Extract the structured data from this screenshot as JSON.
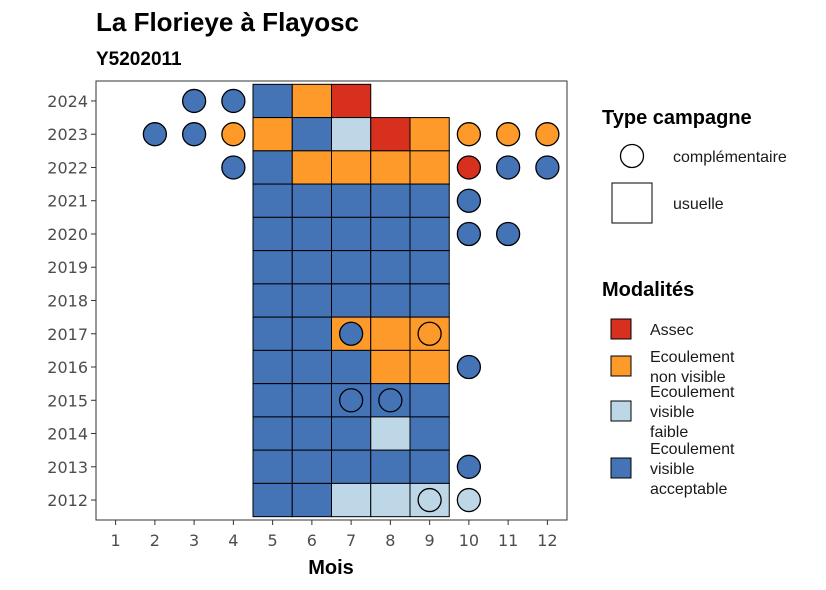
{
  "chart_data": {
    "type": "heatmap",
    "title": "La Florieye à Flayosc",
    "subtitle": "Y5202011",
    "xlabel": "Mois",
    "ylabel": "",
    "x_ticks": [
      1,
      2,
      3,
      4,
      5,
      6,
      7,
      8,
      9,
      10,
      11,
      12
    ],
    "y_ticks": [
      2012,
      2013,
      2014,
      2015,
      2016,
      2017,
      2018,
      2019,
      2020,
      2021,
      2022,
      2023,
      2024
    ],
    "xlim": [
      0.5,
      12.5
    ],
    "ylim": [
      2011.4,
      2024.6
    ],
    "grid": false,
    "legend_position": "right",
    "colors": {
      "Assec": "#d7301f",
      "Ecoulement non visible": "#fd9a2a",
      "Ecoulement visible faible": "#bdd7e7",
      "Ecoulement visible acceptable": "#4474b6"
    },
    "legend_shape": {
      "title": "Type campagne",
      "items": [
        {
          "key": "complementaire",
          "label": "complémentaire",
          "shape": "circle"
        },
        {
          "key": "usuelle",
          "label": "usuelle",
          "shape": "square"
        }
      ]
    },
    "legend_color": {
      "title": "Modalités",
      "items": [
        {
          "key": "Assec",
          "lines": [
            "Assec"
          ]
        },
        {
          "key": "Ecoulement non visible",
          "lines": [
            "Ecoulement",
            "non visible"
          ]
        },
        {
          "key": "Ecoulement visible faible",
          "lines": [
            "Ecoulement",
            "visible",
            "faible"
          ]
        },
        {
          "key": "Ecoulement visible acceptable",
          "lines": [
            "Ecoulement",
            "visible",
            "acceptable"
          ]
        }
      ]
    },
    "usuelle": [
      {
        "year": 2024,
        "values": {
          "5": "Ecoulement visible acceptable",
          "6": "Ecoulement non visible",
          "7": "Assec"
        }
      },
      {
        "year": 2023,
        "values": {
          "5": "Ecoulement non visible",
          "6": "Ecoulement visible acceptable",
          "7": "Ecoulement visible faible",
          "8": "Assec",
          "9": "Ecoulement non visible"
        }
      },
      {
        "year": 2022,
        "values": {
          "5": "Ecoulement visible acceptable",
          "6": "Ecoulement non visible",
          "7": "Ecoulement non visible",
          "8": "Ecoulement non visible",
          "9": "Ecoulement non visible"
        }
      },
      {
        "year": 2021,
        "values": {
          "5": "Ecoulement visible acceptable",
          "6": "Ecoulement visible acceptable",
          "7": "Ecoulement visible acceptable",
          "8": "Ecoulement visible acceptable",
          "9": "Ecoulement visible acceptable"
        }
      },
      {
        "year": 2020,
        "values": {
          "5": "Ecoulement visible acceptable",
          "6": "Ecoulement visible acceptable",
          "7": "Ecoulement visible acceptable",
          "8": "Ecoulement visible acceptable",
          "9": "Ecoulement visible acceptable"
        }
      },
      {
        "year": 2019,
        "values": {
          "5": "Ecoulement visible acceptable",
          "6": "Ecoulement visible acceptable",
          "7": "Ecoulement visible acceptable",
          "8": "Ecoulement visible acceptable",
          "9": "Ecoulement visible acceptable"
        }
      },
      {
        "year": 2018,
        "values": {
          "5": "Ecoulement visible acceptable",
          "6": "Ecoulement visible acceptable",
          "7": "Ecoulement visible acceptable",
          "8": "Ecoulement visible acceptable",
          "9": "Ecoulement visible acceptable"
        }
      },
      {
        "year": 2017,
        "values": {
          "5": "Ecoulement visible acceptable",
          "6": "Ecoulement visible acceptable",
          "7": "Ecoulement non visible",
          "8": "Ecoulement non visible",
          "9": "Ecoulement non visible"
        }
      },
      {
        "year": 2016,
        "values": {
          "5": "Ecoulement visible acceptable",
          "6": "Ecoulement visible acceptable",
          "7": "Ecoulement visible acceptable",
          "8": "Ecoulement non visible",
          "9": "Ecoulement non visible"
        }
      },
      {
        "year": 2015,
        "values": {
          "5": "Ecoulement visible acceptable",
          "6": "Ecoulement visible acceptable",
          "7": "Ecoulement visible acceptable",
          "8": "Ecoulement visible acceptable",
          "9": "Ecoulement visible acceptable"
        }
      },
      {
        "year": 2014,
        "values": {
          "5": "Ecoulement visible acceptable",
          "6": "Ecoulement visible acceptable",
          "7": "Ecoulement visible acceptable",
          "8": "Ecoulement visible faible",
          "9": "Ecoulement visible acceptable"
        }
      },
      {
        "year": 2013,
        "values": {
          "5": "Ecoulement visible acceptable",
          "6": "Ecoulement visible acceptable",
          "7": "Ecoulement visible acceptable",
          "8": "Ecoulement visible acceptable",
          "9": "Ecoulement visible acceptable"
        }
      },
      {
        "year": 2012,
        "values": {
          "5": "Ecoulement visible acceptable",
          "6": "Ecoulement visible acceptable",
          "7": "Ecoulement visible faible",
          "8": "Ecoulement visible faible",
          "9": "Ecoulement visible faible"
        }
      }
    ],
    "complementaire": [
      {
        "year": 2024,
        "values": {
          "3": "Ecoulement visible acceptable",
          "4": "Ecoulement visible acceptable"
        }
      },
      {
        "year": 2023,
        "values": {
          "2": "Ecoulement visible acceptable",
          "3": "Ecoulement visible acceptable",
          "4": "Ecoulement non visible",
          "10": "Ecoulement non visible",
          "11": "Ecoulement non visible",
          "12": "Ecoulement non visible"
        }
      },
      {
        "year": 2022,
        "values": {
          "4": "Ecoulement visible acceptable",
          "10": "Assec",
          "11": "Ecoulement visible acceptable",
          "12": "Ecoulement visible acceptable"
        }
      },
      {
        "year": 2021,
        "values": {
          "10": "Ecoulement visible acceptable"
        }
      },
      {
        "year": 2020,
        "values": {
          "10": "Ecoulement visible acceptable",
          "11": "Ecoulement visible acceptable"
        }
      },
      {
        "year": 2017,
        "values": {
          "7": "Ecoulement visible acceptable",
          "9": "Ecoulement non visible"
        }
      },
      {
        "year": 2016,
        "values": {
          "10": "Ecoulement visible acceptable"
        }
      },
      {
        "year": 2015,
        "values": {
          "7": "Ecoulement visible acceptable",
          "8": "Ecoulement visible acceptable"
        }
      },
      {
        "year": 2013,
        "values": {
          "10": "Ecoulement visible acceptable"
        }
      },
      {
        "year": 2012,
        "values": {
          "9": "Ecoulement visible faible",
          "10": "Ecoulement visible faible"
        }
      }
    ]
  }
}
